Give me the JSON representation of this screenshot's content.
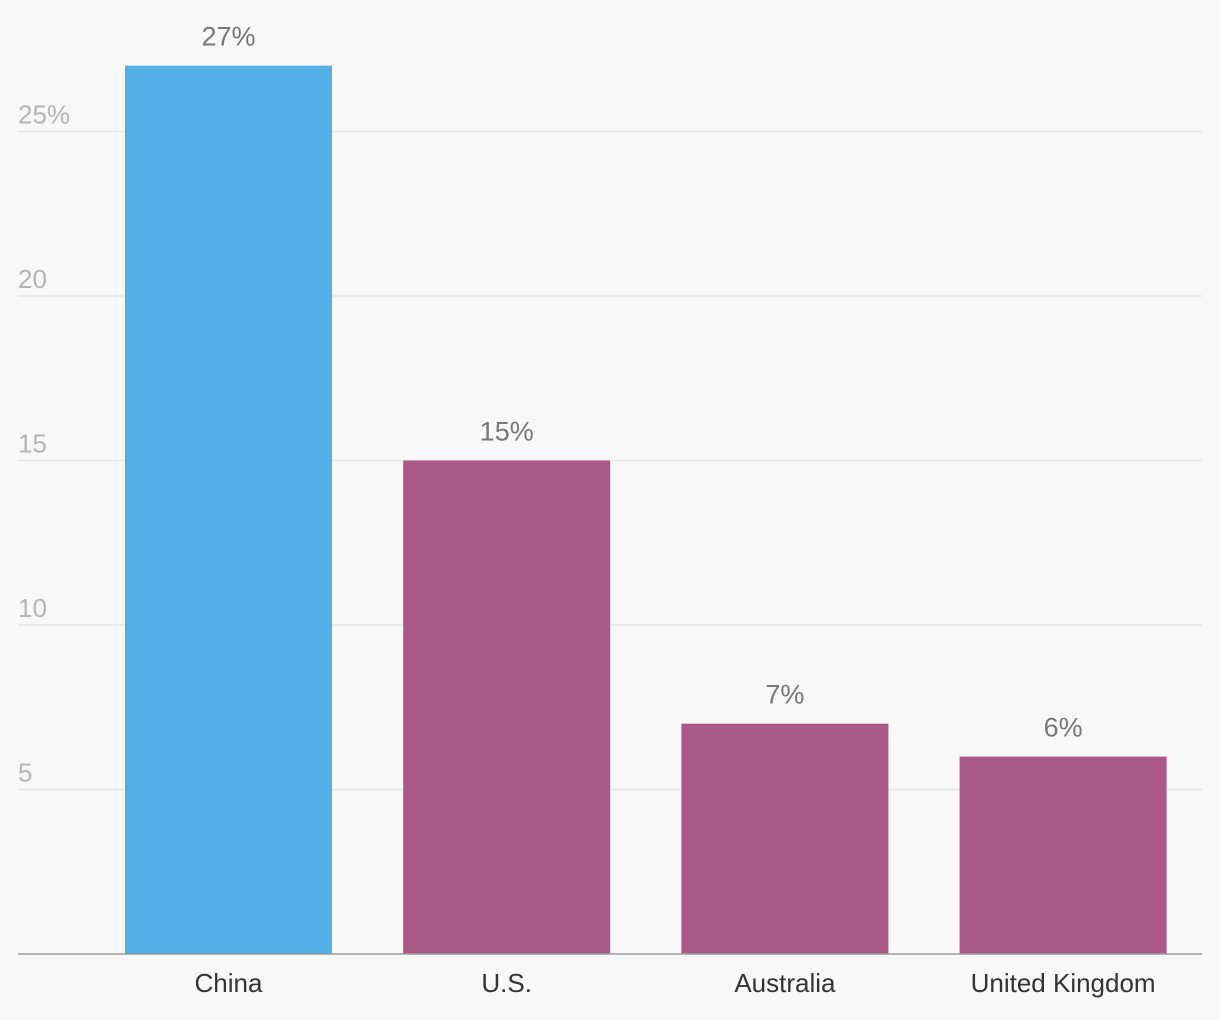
{
  "chart_data": {
    "type": "bar",
    "categories": [
      "China",
      "U.S.",
      "Australia",
      "United Kingdom"
    ],
    "values": [
      27,
      15,
      7,
      6
    ],
    "data_labels": [
      "27%",
      "15%",
      "7%",
      "6%"
    ],
    "ylim": [
      0,
      27
    ],
    "yticks": [
      5,
      10,
      15,
      20,
      25
    ],
    "ytick_labels": [
      "5",
      "10",
      "15",
      "20",
      "25%"
    ],
    "grid": true,
    "highlight_color": "#52b1e4",
    "bar_color": "#aa5986",
    "background_color": "#f8f8f8"
  }
}
